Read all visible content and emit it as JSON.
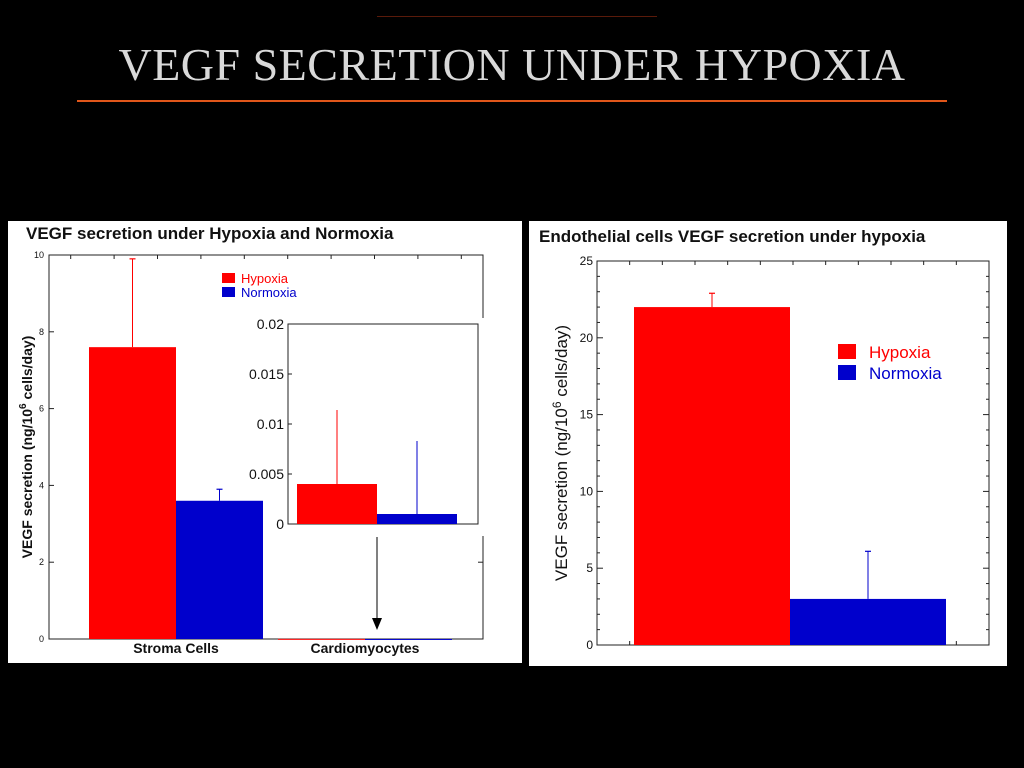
{
  "slide": {
    "title": "VEGF SECRETION UNDER HYPOXIA"
  },
  "colors": {
    "hypoxia": "#ff0000",
    "normoxia": "#0000cc",
    "title_rule": "#e0561a",
    "background": "#000000"
  },
  "chart_data": [
    {
      "type": "bar",
      "title": "VEGF secretion under Hypoxia and Normoxia",
      "ylabel": "VEGF secretion (ng/10^6 cells/day)",
      "ylabel_parts": {
        "before": "VEGF secretion (ng/10",
        "sup": "6",
        "after": " cells/day)"
      },
      "categories": [
        "Stroma Cells",
        "Cardiomyocytes"
      ],
      "ylim": [
        0,
        10
      ],
      "yticks": [
        0,
        2,
        4,
        6,
        8,
        10
      ],
      "series": [
        {
          "name": "Hypoxia",
          "color": "#ff0000",
          "values": [
            7.6,
            0.004
          ],
          "errors": [
            2.3,
            0.0074
          ]
        },
        {
          "name": "Normoxia",
          "color": "#0000cc",
          "values": [
            3.6,
            0.001
          ],
          "errors": [
            0.3,
            0.0073
          ]
        }
      ],
      "legend": "top-center",
      "inset": {
        "category": "Cardiomyocytes",
        "ylim": [
          0,
          0.02
        ],
        "yticks": [
          "0",
          "0.005",
          "0.01",
          "0.015",
          "0.02"
        ]
      }
    },
    {
      "type": "bar",
      "title": "Endothelial cells VEGF secretion under hypoxia",
      "ylabel": "VEGF secretion (ng/10^6 cells/day)",
      "ylabel_parts": {
        "before": "VEGF secretion (ng/10",
        "sup": "6",
        "after": " cells/day)"
      },
      "categories": [
        ""
      ],
      "ylim": [
        0,
        25
      ],
      "yticks": [
        0,
        5,
        10,
        15,
        20,
        25
      ],
      "series": [
        {
          "name": "Hypoxia",
          "color": "#ff0000",
          "values": [
            22.0
          ],
          "errors": [
            0.9
          ]
        },
        {
          "name": "Normoxia",
          "color": "#0000cc",
          "values": [
            3.0
          ],
          "errors": [
            3.1
          ]
        }
      ],
      "legend": "top-right"
    }
  ]
}
